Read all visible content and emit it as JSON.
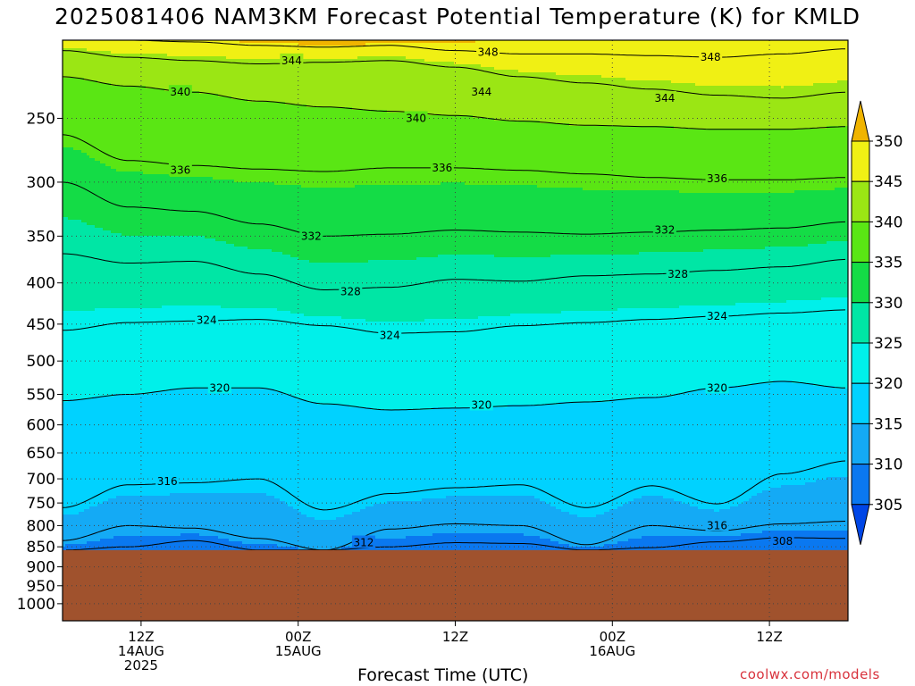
{
  "title": "2025081406 NAM3KM Forecast Potential Temperature (K) for KMLD",
  "footer": {
    "xlabel": "Forecast Time (UTC)",
    "credit": "coolwx.com/models"
  },
  "colors": {
    "ground": "#a0522d",
    "bands": [
      {
        "min": 300,
        "max": 305,
        "color": "#0046e6"
      },
      {
        "min": 305,
        "max": 310,
        "color": "#0a78f0"
      },
      {
        "min": 310,
        "max": 315,
        "color": "#14aaf5"
      },
      {
        "min": 315,
        "max": 320,
        "color": "#00d2ff"
      },
      {
        "min": 320,
        "max": 325,
        "color": "#00f0ea"
      },
      {
        "min": 325,
        "max": 330,
        "color": "#00e6a5"
      },
      {
        "min": 330,
        "max": 335,
        "color": "#14dc46"
      },
      {
        "min": 335,
        "max": 340,
        "color": "#5ae614"
      },
      {
        "min": 340,
        "max": 345,
        "color": "#9be614"
      },
      {
        "min": 345,
        "max": 350,
        "color": "#f0f014"
      },
      {
        "min": 350,
        "max": 355,
        "color": "#f0b400"
      }
    ]
  },
  "chart_data": {
    "type": "heatmap",
    "title": "2025081406 NAM3KM Forecast Potential Temperature (K) for KMLD",
    "xlabel": "Forecast Time (UTC)",
    "ylabel": "",
    "x_axis": {
      "unit": "forecast hour",
      "range": [
        0,
        60
      ],
      "ticks": [
        {
          "hour": 6,
          "lines": [
            "12Z",
            "14AUG",
            "2025"
          ]
        },
        {
          "hour": 18,
          "lines": [
            "00Z",
            "15AUG"
          ]
        },
        {
          "hour": 30,
          "lines": [
            "12Z"
          ]
        },
        {
          "hour": 42,
          "lines": [
            "00Z",
            "16AUG"
          ]
        },
        {
          "hour": 54,
          "lines": [
            "12Z"
          ]
        }
      ]
    },
    "y_axis": {
      "unit": "hPa",
      "scale": "log",
      "inverted": true,
      "range": [
        1050,
        200
      ],
      "ticks": [
        250,
        300,
        350,
        400,
        450,
        500,
        550,
        600,
        650,
        700,
        750,
        800,
        850,
        900,
        950,
        1000
      ]
    },
    "surface_pressure_hPa": 858,
    "grid": true,
    "colorbar": {
      "position": "right",
      "labels": [
        305,
        310,
        315,
        320,
        325,
        330,
        335,
        340,
        345,
        350
      ],
      "extend": "both"
    },
    "contour_interval_K": 4,
    "contour_labels": [
      {
        "value": 344,
        "hour": 17.5,
        "p": 212
      },
      {
        "value": 348,
        "hour": 32.5,
        "p": 207
      },
      {
        "value": 348,
        "hour": 49.5,
        "p": 210
      },
      {
        "value": 340,
        "hour": 9,
        "p": 232
      },
      {
        "value": 344,
        "hour": 32,
        "p": 232
      },
      {
        "value": 344,
        "hour": 46,
        "p": 236
      },
      {
        "value": 340,
        "hour": 27,
        "p": 250
      },
      {
        "value": 336,
        "hour": 9,
        "p": 290
      },
      {
        "value": 336,
        "hour": 29,
        "p": 288
      },
      {
        "value": 336,
        "hour": 50,
        "p": 297
      },
      {
        "value": 332,
        "hour": 19,
        "p": 350
      },
      {
        "value": 332,
        "hour": 46,
        "p": 344
      },
      {
        "value": 328,
        "hour": 22,
        "p": 410
      },
      {
        "value": 328,
        "hour": 47,
        "p": 390
      },
      {
        "value": 324,
        "hour": 11,
        "p": 445
      },
      {
        "value": 324,
        "hour": 25,
        "p": 465
      },
      {
        "value": 324,
        "hour": 50,
        "p": 440
      },
      {
        "value": 320,
        "hour": 12,
        "p": 540
      },
      {
        "value": 320,
        "hour": 32,
        "p": 567
      },
      {
        "value": 320,
        "hour": 50,
        "p": 540
      },
      {
        "value": 316,
        "hour": 8,
        "p": 705
      },
      {
        "value": 316,
        "hour": 50,
        "p": 800
      },
      {
        "value": 312,
        "hour": 23,
        "p": 840
      },
      {
        "value": 308,
        "hour": 55,
        "p": 837
      }
    ],
    "isentropes": [
      {
        "theta": 350,
        "p": [
          200,
          200,
          200,
          201,
          203,
          202,
          201,
          200,
          200,
          200,
          200,
          200,
          200
        ]
      },
      {
        "theta": 348,
        "p": [
          200,
          200,
          201,
          203,
          204,
          203,
          206,
          208,
          208,
          209,
          210,
          208,
          205
        ]
      },
      {
        "theta": 344,
        "p": [
          206,
          210,
          212,
          214,
          213,
          212,
          216,
          222,
          226,
          230,
          234,
          236,
          232
        ]
      },
      {
        "theta": 340,
        "p": [
          222,
          228,
          232,
          238,
          242,
          245,
          248,
          252,
          255,
          256,
          258,
          258,
          256
        ]
      },
      {
        "theta": 336,
        "p": [
          262,
          282,
          286,
          289,
          291,
          288,
          288,
          290,
          293,
          296,
          298,
          298,
          296
        ]
      },
      {
        "theta": 332,
        "p": [
          300,
          322,
          326,
          338,
          350,
          348,
          344,
          346,
          348,
          346,
          344,
          342,
          336
        ]
      },
      {
        "theta": 328,
        "p": [
          368,
          378,
          376,
          390,
          408,
          405,
          396,
          398,
          392,
          390,
          386,
          382,
          374
        ]
      },
      {
        "theta": 324,
        "p": [
          458,
          448,
          446,
          444,
          452,
          462,
          460,
          452,
          448,
          444,
          440,
          436,
          432
        ]
      },
      {
        "theta": 320,
        "p": [
          560,
          550,
          540,
          540,
          565,
          575,
          572,
          568,
          562,
          555,
          540,
          530,
          540
        ]
      },
      {
        "theta": 316,
        "p": [
          760,
          712,
          708,
          700,
          765,
          730,
          718,
          712,
          760,
          714,
          752,
          690,
          665
        ]
      },
      {
        "theta": 312,
        "p": [
          835,
          800,
          806,
          830,
          858,
          808,
          796,
          800,
          845,
          800,
          812,
          796,
          790
        ]
      },
      {
        "theta": 308,
        "p": [
          858,
          850,
          835,
          858,
          858,
          850,
          840,
          842,
          858,
          852,
          838,
          828,
          830
        ]
      }
    ]
  }
}
